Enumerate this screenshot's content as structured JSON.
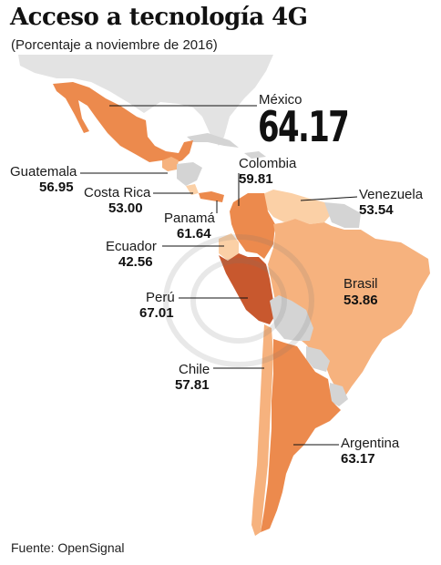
{
  "title": "Acceso a tecnología 4G",
  "subtitle": "(Porcentaje a noviembre de 2016)",
  "source": "Fuente: OpenSignal",
  "colors": {
    "dark": "#c8582e",
    "medium": "#ec8a4d",
    "light": "#f6b27e",
    "pale": "#fbd0a6",
    "no_data": "#d4d4d4",
    "background_land": "#e3e3e3"
  },
  "countries": [
    {
      "name": "México",
      "value": "64.17"
    },
    {
      "name": "Guatemala",
      "value": "56.95"
    },
    {
      "name": "Costa Rica",
      "value": "53.00"
    },
    {
      "name": "Panamá",
      "value": "61.64"
    },
    {
      "name": "Colombia",
      "value": "59.81"
    },
    {
      "name": "Venezuela",
      "value": "53.54"
    },
    {
      "name": "Ecuador",
      "value": "42.56"
    },
    {
      "name": "Perú",
      "value": "67.01"
    },
    {
      "name": "Brasil",
      "value": "53.86"
    },
    {
      "name": "Chile",
      "value": "57.81"
    },
    {
      "name": "Argentina",
      "value": "63.17"
    }
  ]
}
